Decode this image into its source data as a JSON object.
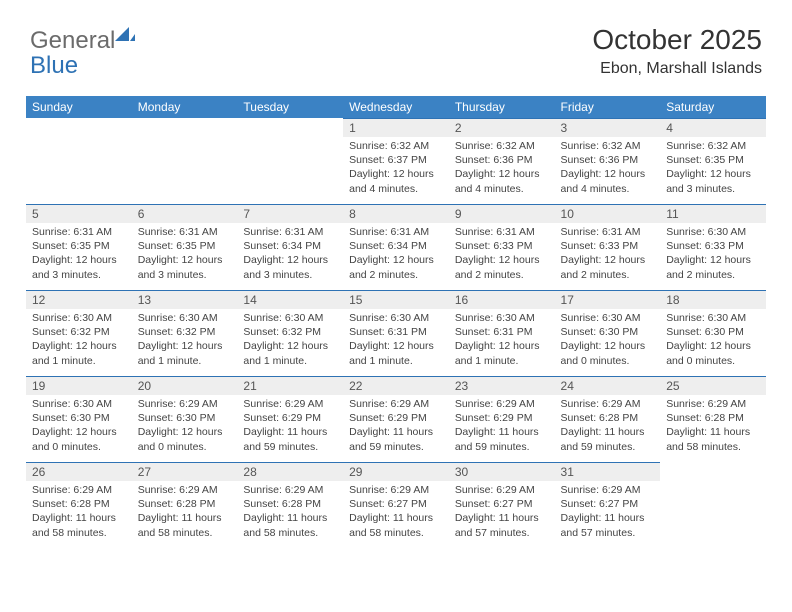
{
  "logo": {
    "general": "General",
    "blue": "Blue"
  },
  "title": "October 2025",
  "location": "Ebon, Marshall Islands",
  "weekdays": [
    "Sunday",
    "Monday",
    "Tuesday",
    "Wednesday",
    "Thursday",
    "Friday",
    "Saturday"
  ],
  "colors": {
    "header_bg": "#3b82c4",
    "header_text": "#ffffff",
    "daynum_bg": "#eeeeee",
    "border": "#2e72b4",
    "logo_gray": "#6b6b6b",
    "logo_blue": "#2e72b4"
  },
  "weeks": [
    [
      null,
      null,
      null,
      {
        "n": "1",
        "sr": "Sunrise: 6:32 AM",
        "ss": "Sunset: 6:37 PM",
        "dl": "Daylight: 12 hours and 4 minutes."
      },
      {
        "n": "2",
        "sr": "Sunrise: 6:32 AM",
        "ss": "Sunset: 6:36 PM",
        "dl": "Daylight: 12 hours and 4 minutes."
      },
      {
        "n": "3",
        "sr": "Sunrise: 6:32 AM",
        "ss": "Sunset: 6:36 PM",
        "dl": "Daylight: 12 hours and 4 minutes."
      },
      {
        "n": "4",
        "sr": "Sunrise: 6:32 AM",
        "ss": "Sunset: 6:35 PM",
        "dl": "Daylight: 12 hours and 3 minutes."
      }
    ],
    [
      {
        "n": "5",
        "sr": "Sunrise: 6:31 AM",
        "ss": "Sunset: 6:35 PM",
        "dl": "Daylight: 12 hours and 3 minutes."
      },
      {
        "n": "6",
        "sr": "Sunrise: 6:31 AM",
        "ss": "Sunset: 6:35 PM",
        "dl": "Daylight: 12 hours and 3 minutes."
      },
      {
        "n": "7",
        "sr": "Sunrise: 6:31 AM",
        "ss": "Sunset: 6:34 PM",
        "dl": "Daylight: 12 hours and 3 minutes."
      },
      {
        "n": "8",
        "sr": "Sunrise: 6:31 AM",
        "ss": "Sunset: 6:34 PM",
        "dl": "Daylight: 12 hours and 2 minutes."
      },
      {
        "n": "9",
        "sr": "Sunrise: 6:31 AM",
        "ss": "Sunset: 6:33 PM",
        "dl": "Daylight: 12 hours and 2 minutes."
      },
      {
        "n": "10",
        "sr": "Sunrise: 6:31 AM",
        "ss": "Sunset: 6:33 PM",
        "dl": "Daylight: 12 hours and 2 minutes."
      },
      {
        "n": "11",
        "sr": "Sunrise: 6:30 AM",
        "ss": "Sunset: 6:33 PM",
        "dl": "Daylight: 12 hours and 2 minutes."
      }
    ],
    [
      {
        "n": "12",
        "sr": "Sunrise: 6:30 AM",
        "ss": "Sunset: 6:32 PM",
        "dl": "Daylight: 12 hours and 1 minute."
      },
      {
        "n": "13",
        "sr": "Sunrise: 6:30 AM",
        "ss": "Sunset: 6:32 PM",
        "dl": "Daylight: 12 hours and 1 minute."
      },
      {
        "n": "14",
        "sr": "Sunrise: 6:30 AM",
        "ss": "Sunset: 6:32 PM",
        "dl": "Daylight: 12 hours and 1 minute."
      },
      {
        "n": "15",
        "sr": "Sunrise: 6:30 AM",
        "ss": "Sunset: 6:31 PM",
        "dl": "Daylight: 12 hours and 1 minute."
      },
      {
        "n": "16",
        "sr": "Sunrise: 6:30 AM",
        "ss": "Sunset: 6:31 PM",
        "dl": "Daylight: 12 hours and 1 minute."
      },
      {
        "n": "17",
        "sr": "Sunrise: 6:30 AM",
        "ss": "Sunset: 6:30 PM",
        "dl": "Daylight: 12 hours and 0 minutes."
      },
      {
        "n": "18",
        "sr": "Sunrise: 6:30 AM",
        "ss": "Sunset: 6:30 PM",
        "dl": "Daylight: 12 hours and 0 minutes."
      }
    ],
    [
      {
        "n": "19",
        "sr": "Sunrise: 6:30 AM",
        "ss": "Sunset: 6:30 PM",
        "dl": "Daylight: 12 hours and 0 minutes."
      },
      {
        "n": "20",
        "sr": "Sunrise: 6:29 AM",
        "ss": "Sunset: 6:30 PM",
        "dl": "Daylight: 12 hours and 0 minutes."
      },
      {
        "n": "21",
        "sr": "Sunrise: 6:29 AM",
        "ss": "Sunset: 6:29 PM",
        "dl": "Daylight: 11 hours and 59 minutes."
      },
      {
        "n": "22",
        "sr": "Sunrise: 6:29 AM",
        "ss": "Sunset: 6:29 PM",
        "dl": "Daylight: 11 hours and 59 minutes."
      },
      {
        "n": "23",
        "sr": "Sunrise: 6:29 AM",
        "ss": "Sunset: 6:29 PM",
        "dl": "Daylight: 11 hours and 59 minutes."
      },
      {
        "n": "24",
        "sr": "Sunrise: 6:29 AM",
        "ss": "Sunset: 6:28 PM",
        "dl": "Daylight: 11 hours and 59 minutes."
      },
      {
        "n": "25",
        "sr": "Sunrise: 6:29 AM",
        "ss": "Sunset: 6:28 PM",
        "dl": "Daylight: 11 hours and 58 minutes."
      }
    ],
    [
      {
        "n": "26",
        "sr": "Sunrise: 6:29 AM",
        "ss": "Sunset: 6:28 PM",
        "dl": "Daylight: 11 hours and 58 minutes."
      },
      {
        "n": "27",
        "sr": "Sunrise: 6:29 AM",
        "ss": "Sunset: 6:28 PM",
        "dl": "Daylight: 11 hours and 58 minutes."
      },
      {
        "n": "28",
        "sr": "Sunrise: 6:29 AM",
        "ss": "Sunset: 6:28 PM",
        "dl": "Daylight: 11 hours and 58 minutes."
      },
      {
        "n": "29",
        "sr": "Sunrise: 6:29 AM",
        "ss": "Sunset: 6:27 PM",
        "dl": "Daylight: 11 hours and 58 minutes."
      },
      {
        "n": "30",
        "sr": "Sunrise: 6:29 AM",
        "ss": "Sunset: 6:27 PM",
        "dl": "Daylight: 11 hours and 57 minutes."
      },
      {
        "n": "31",
        "sr": "Sunrise: 6:29 AM",
        "ss": "Sunset: 6:27 PM",
        "dl": "Daylight: 11 hours and 57 minutes."
      },
      null
    ]
  ]
}
